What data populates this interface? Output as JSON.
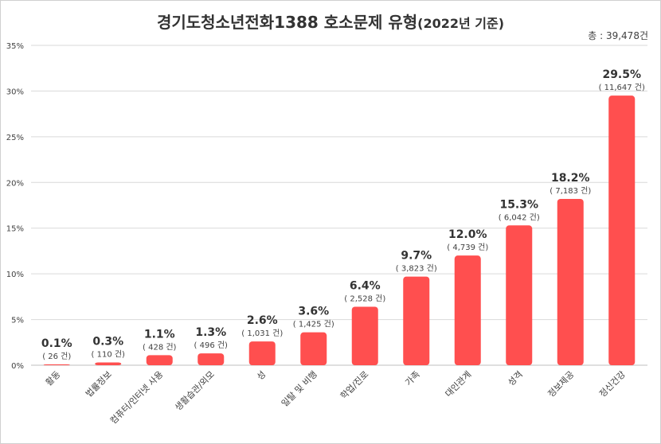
{
  "chart_data": {
    "type": "bar",
    "title_main": "경기도청소년전화1388  호소문제 유형",
    "title_suffix": "(2022년 기준)",
    "total_label": "총 : 39,478건",
    "categories": [
      "활동",
      "법률정보",
      "컴퓨터/인터넷 사용",
      "생활습관/외모",
      "성",
      "일탈 및 비행",
      "학업/진로",
      "가족",
      "대인관계",
      "성격",
      "정보제공",
      "정신건강"
    ],
    "values": [
      0.1,
      0.3,
      1.1,
      1.3,
      2.6,
      3.6,
      6.4,
      9.7,
      12.0,
      15.3,
      18.2,
      29.5
    ],
    "value_labels": [
      "0.1%",
      "0.3%",
      "1.1%",
      "1.3%",
      "2.6%",
      "3.6%",
      "6.4%",
      "9.7%",
      "12.0%",
      "15.3%",
      "18.2%",
      "29.5%"
    ],
    "count_labels": [
      "( 26 건)",
      "( 110 건)",
      "( 428 건)",
      "( 496 건)",
      "( 1,031 건)",
      "( 1,425 건)",
      "( 2,528 건)",
      "( 3,823 건)",
      "( 4,739 건)",
      "( 6,042 건)",
      "( 7,183 건)",
      "( 11,647 건)"
    ],
    "ylim": [
      0,
      35
    ],
    "y_ticks": [
      "0%",
      "5%",
      "10%",
      "15%",
      "20%",
      "25%",
      "30%",
      "35%"
    ],
    "grid": true,
    "colors": {
      "bar": "#FF4F4F",
      "grid": "#d9d9d9",
      "text": "#404040",
      "title": "#333333"
    }
  }
}
